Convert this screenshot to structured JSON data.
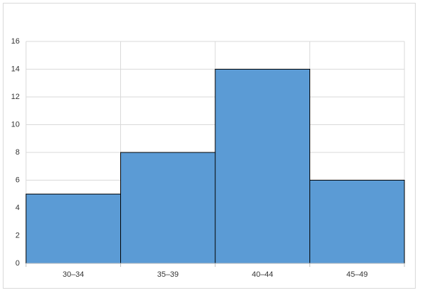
{
  "chart_data": {
    "type": "bar",
    "categories": [
      "30–34",
      "35–39",
      "40–44",
      "45–49"
    ],
    "values": [
      5,
      8,
      14,
      6
    ],
    "color": "#5b9bd5",
    "ylim": [
      0,
      16
    ],
    "yticks": [
      0,
      2,
      4,
      6,
      8,
      10,
      12,
      14,
      16
    ],
    "grid": true
  }
}
